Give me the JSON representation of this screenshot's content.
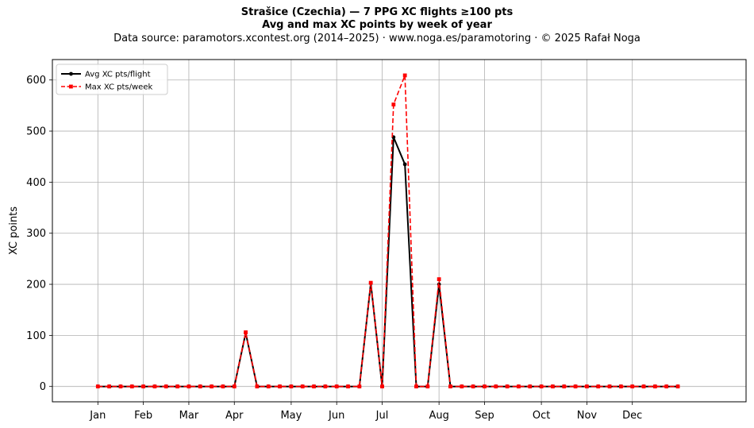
{
  "header": {
    "title_line1": "Strašice (Czechia)  —  7 PPG XC flights ≥100 pts",
    "title_line2": "Avg and max XC points by week of year",
    "subtitle": "Data source: paramotors.xcontest.org (2014–2025)  ·  www.noga.es/paramotoring  ·  © 2025 Rafał Noga"
  },
  "chart_data": {
    "type": "line",
    "title": "Strašice (Czechia)  —  7 PPG XC flights ≥100 pts\nAvg and max XC points by week of year",
    "subtitle": "Data source: paramotors.xcontest.org (2014–2025)  ·  www.noga.es/paramotoring  ·  © 2025 Rafał Noga",
    "xlabel": "",
    "ylabel": "XC points",
    "xlim": [
      -4,
      57
    ],
    "ylim": [
      -30,
      640
    ],
    "yticks": [
      0,
      100,
      200,
      300,
      400,
      500,
      600
    ],
    "xticks": [
      {
        "week": 0,
        "label": "Jan"
      },
      {
        "week": 4,
        "label": "Feb"
      },
      {
        "week": 8,
        "label": "Mar"
      },
      {
        "week": 12,
        "label": "Apr"
      },
      {
        "week": 17,
        "label": "May"
      },
      {
        "week": 21,
        "label": "Jun"
      },
      {
        "week": 25,
        "label": "Jul"
      },
      {
        "week": 30,
        "label": "Aug"
      },
      {
        "week": 34,
        "label": "Sep"
      },
      {
        "week": 39,
        "label": "Oct"
      },
      {
        "week": 43,
        "label": "Nov"
      },
      {
        "week": 47,
        "label": "Dec"
      }
    ],
    "grid": true,
    "legend_position": "top-left",
    "x": [
      0,
      1,
      2,
      3,
      4,
      5,
      6,
      7,
      8,
      9,
      10,
      11,
      12,
      13,
      14,
      15,
      16,
      17,
      18,
      19,
      20,
      21,
      22,
      23,
      24,
      25,
      26,
      27,
      28,
      29,
      30,
      31,
      32,
      33,
      34,
      35,
      36,
      37,
      38,
      39,
      40,
      41,
      42,
      43,
      44,
      45,
      46,
      47,
      48,
      49,
      50,
      51
    ],
    "series": [
      {
        "name": "Avg XC pts/flight",
        "color": "#000000",
        "style": "solid",
        "marker": "circle",
        "values": [
          0,
          0,
          0,
          0,
          0,
          0,
          0,
          0,
          0,
          0,
          0,
          0,
          0,
          105,
          0,
          0,
          0,
          0,
          0,
          0,
          0,
          0,
          0,
          0,
          202,
          0,
          488,
          435,
          0,
          0,
          200,
          0,
          0,
          0,
          0,
          0,
          0,
          0,
          0,
          0,
          0,
          0,
          0,
          0,
          0,
          0,
          0,
          0,
          0,
          0,
          0,
          0
        ]
      },
      {
        "name": "Max XC pts/week",
        "color": "#ff0000",
        "style": "dashed",
        "marker": "square",
        "values": [
          0,
          0,
          0,
          0,
          0,
          0,
          0,
          0,
          0,
          0,
          0,
          0,
          0,
          106,
          0,
          0,
          0,
          0,
          0,
          0,
          0,
          0,
          0,
          0,
          203,
          0,
          552,
          609,
          0,
          0,
          210,
          0,
          0,
          0,
          0,
          0,
          0,
          0,
          0,
          0,
          0,
          0,
          0,
          0,
          0,
          0,
          0,
          0,
          0,
          0,
          0,
          0
        ]
      }
    ]
  }
}
